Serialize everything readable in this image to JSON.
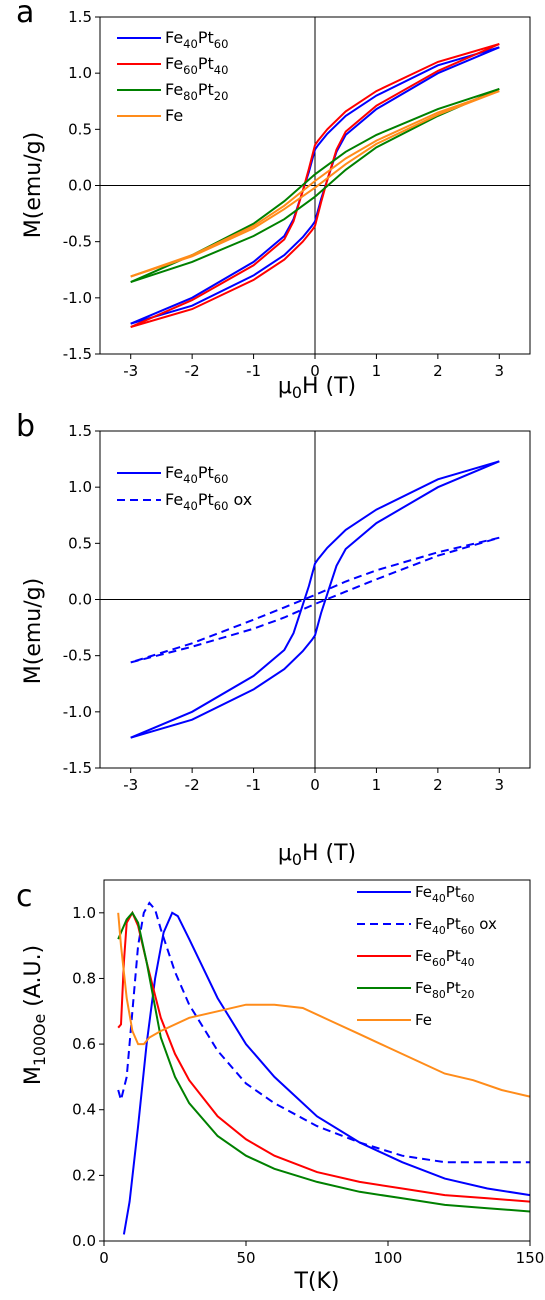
{
  "chart_data": [
    {
      "panel": "a",
      "type": "line",
      "xlabel": "μ0H (T)",
      "ylabel": "M(emu/g)",
      "xlim": [
        -3.5,
        3.5
      ],
      "ylim": [
        -1.5,
        1.5
      ],
      "xticks": [
        -3,
        -2,
        -1,
        0,
        1,
        2,
        3
      ],
      "yticks": [
        -1.5,
        -1.0,
        -0.5,
        0.0,
        0.5,
        1.0,
        1.5
      ],
      "legend_position": "top-left",
      "series": [
        {
          "name": "Fe40Pt60",
          "color": "#0000ff",
          "style": "solid",
          "descending": [
            [
              3.0,
              1.23
            ],
            [
              2.0,
              1.07
            ],
            [
              1.0,
              0.8
            ],
            [
              0.5,
              0.62
            ],
            [
              0.2,
              0.46
            ],
            [
              0.05,
              0.36
            ],
            [
              0.0,
              0.32
            ],
            [
              -0.1,
              0.12
            ],
            [
              -0.2,
              -0.05
            ],
            [
              -0.35,
              -0.3
            ],
            [
              -0.5,
              -0.45
            ],
            [
              -1.0,
              -0.68
            ],
            [
              -2.0,
              -1.0
            ],
            [
              -3.0,
              -1.23
            ]
          ],
          "ascending": [
            [
              -3.0,
              -1.23
            ],
            [
              -2.0,
              -1.07
            ],
            [
              -1.0,
              -0.8
            ],
            [
              -0.5,
              -0.62
            ],
            [
              -0.2,
              -0.46
            ],
            [
              -0.05,
              -0.36
            ],
            [
              0.0,
              -0.32
            ],
            [
              0.1,
              -0.12
            ],
            [
              0.2,
              0.05
            ],
            [
              0.35,
              0.3
            ],
            [
              0.5,
              0.45
            ],
            [
              1.0,
              0.68
            ],
            [
              2.0,
              1.0
            ],
            [
              3.0,
              1.23
            ]
          ]
        },
        {
          "name": "Fe60Pt40",
          "color": "#ff0000",
          "style": "solid",
          "descending": [
            [
              3.0,
              1.26
            ],
            [
              2.0,
              1.1
            ],
            [
              1.0,
              0.84
            ],
            [
              0.5,
              0.66
            ],
            [
              0.2,
              0.5
            ],
            [
              0.05,
              0.4
            ],
            [
              0.0,
              0.36
            ],
            [
              -0.1,
              0.15
            ],
            [
              -0.2,
              -0.05
            ],
            [
              -0.35,
              -0.32
            ],
            [
              -0.5,
              -0.48
            ],
            [
              -1.0,
              -0.71
            ],
            [
              -2.0,
              -1.02
            ],
            [
              -3.0,
              -1.26
            ]
          ],
          "ascending": [
            [
              -3.0,
              -1.26
            ],
            [
              -2.0,
              -1.1
            ],
            [
              -1.0,
              -0.84
            ],
            [
              -0.5,
              -0.66
            ],
            [
              -0.2,
              -0.5
            ],
            [
              -0.05,
              -0.4
            ],
            [
              0.0,
              -0.36
            ],
            [
              0.1,
              -0.15
            ],
            [
              0.2,
              0.05
            ],
            [
              0.35,
              0.32
            ],
            [
              0.5,
              0.48
            ],
            [
              1.0,
              0.71
            ],
            [
              2.0,
              1.02
            ],
            [
              3.0,
              1.26
            ]
          ]
        },
        {
          "name": "Fe80Pt20",
          "color": "#008000",
          "style": "solid",
          "descending": [
            [
              3.0,
              0.86
            ],
            [
              2.0,
              0.68
            ],
            [
              1.0,
              0.45
            ],
            [
              0.5,
              0.3
            ],
            [
              0.0,
              0.1
            ],
            [
              -0.5,
              -0.14
            ],
            [
              -1.0,
              -0.34
            ],
            [
              -2.0,
              -0.62
            ],
            [
              -3.0,
              -0.86
            ]
          ],
          "ascending": [
            [
              -3.0,
              -0.86
            ],
            [
              -2.0,
              -0.68
            ],
            [
              -1.0,
              -0.45
            ],
            [
              -0.5,
              -0.3
            ],
            [
              0.0,
              -0.1
            ],
            [
              0.5,
              0.14
            ],
            [
              1.0,
              0.34
            ],
            [
              2.0,
              0.62
            ],
            [
              3.0,
              0.86
            ]
          ]
        },
        {
          "name": "Fe",
          "color": "#ff8c1a",
          "style": "solid",
          "descending": [
            [
              3.0,
              0.84
            ],
            [
              2.0,
              0.65
            ],
            [
              1.0,
              0.4
            ],
            [
              0.5,
              0.24
            ],
            [
              0.0,
              0.04
            ],
            [
              -0.5,
              -0.18
            ],
            [
              -1.0,
              -0.36
            ],
            [
              -2.0,
              -0.62
            ],
            [
              -3.0,
              -0.81
            ]
          ],
          "ascending": [
            [
              -3.0,
              -0.81
            ],
            [
              -2.0,
              -0.63
            ],
            [
              -1.0,
              -0.38
            ],
            [
              -0.5,
              -0.21
            ],
            [
              0.0,
              -0.02
            ],
            [
              0.5,
              0.19
            ],
            [
              1.0,
              0.37
            ],
            [
              2.0,
              0.63
            ],
            [
              3.0,
              0.84
            ]
          ]
        }
      ]
    },
    {
      "panel": "b",
      "type": "line",
      "xlabel": "μ0H (T)",
      "ylabel": "M(emu/g)",
      "xlim": [
        -3.5,
        3.5
      ],
      "ylim": [
        -1.5,
        1.5
      ],
      "xticks": [
        -3,
        -2,
        -1,
        0,
        1,
        2,
        3
      ],
      "yticks": [
        -1.5,
        -1.0,
        -0.5,
        0.0,
        0.5,
        1.0,
        1.5
      ],
      "legend_position": "top-left",
      "series": [
        {
          "name": "Fe40Pt60",
          "color": "#0000ff",
          "style": "solid",
          "descending": [
            [
              3.0,
              1.23
            ],
            [
              2.0,
              1.07
            ],
            [
              1.0,
              0.8
            ],
            [
              0.5,
              0.62
            ],
            [
              0.2,
              0.46
            ],
            [
              0.05,
              0.36
            ],
            [
              0.0,
              0.32
            ],
            [
              -0.1,
              0.12
            ],
            [
              -0.2,
              -0.05
            ],
            [
              -0.35,
              -0.3
            ],
            [
              -0.5,
              -0.45
            ],
            [
              -1.0,
              -0.68
            ],
            [
              -2.0,
              -1.0
            ],
            [
              -3.0,
              -1.23
            ]
          ],
          "ascending": [
            [
              -3.0,
              -1.23
            ],
            [
              -2.0,
              -1.07
            ],
            [
              -1.0,
              -0.8
            ],
            [
              -0.5,
              -0.62
            ],
            [
              -0.2,
              -0.46
            ],
            [
              -0.05,
              -0.36
            ],
            [
              0.0,
              -0.32
            ],
            [
              0.1,
              -0.12
            ],
            [
              0.2,
              0.05
            ],
            [
              0.35,
              0.3
            ],
            [
              0.5,
              0.45
            ],
            [
              1.0,
              0.68
            ],
            [
              2.0,
              1.0
            ],
            [
              3.0,
              1.23
            ]
          ]
        },
        {
          "name": "Fe40Pt60 ox",
          "color": "#0000ff",
          "style": "dashed",
          "descending": [
            [
              3.0,
              0.55
            ],
            [
              2.0,
              0.42
            ],
            [
              1.0,
              0.26
            ],
            [
              0.5,
              0.16
            ],
            [
              0.0,
              0.04
            ],
            [
              -0.5,
              -0.07
            ],
            [
              -1.0,
              -0.18
            ],
            [
              -2.0,
              -0.39
            ],
            [
              -3.0,
              -0.56
            ]
          ],
          "ascending": [
            [
              -3.0,
              -0.56
            ],
            [
              -2.0,
              -0.42
            ],
            [
              -1.0,
              -0.26
            ],
            [
              -0.5,
              -0.16
            ],
            [
              0.0,
              -0.04
            ],
            [
              0.5,
              0.07
            ],
            [
              1.0,
              0.18
            ],
            [
              2.0,
              0.39
            ],
            [
              3.0,
              0.55
            ]
          ]
        }
      ]
    },
    {
      "panel": "c",
      "type": "line",
      "xlabel": "T(K)",
      "ylabel": "M100Oe (A.U.)",
      "xlim": [
        0,
        150
      ],
      "ylim": [
        0.0,
        1.1
      ],
      "xticks": [
        0,
        50,
        100,
        150
      ],
      "yticks": [
        0.0,
        0.2,
        0.4,
        0.6,
        0.8,
        1.0
      ],
      "legend_position": "top-right",
      "series": [
        {
          "name": "Fe40Pt60",
          "color": "#0000ff",
          "style": "solid",
          "points": [
            [
              7,
              0.02
            ],
            [
              9,
              0.12
            ],
            [
              12,
              0.35
            ],
            [
              15,
              0.6
            ],
            [
              18,
              0.8
            ],
            [
              21,
              0.94
            ],
            [
              24,
              1.0
            ],
            [
              26,
              0.99
            ],
            [
              30,
              0.92
            ],
            [
              35,
              0.83
            ],
            [
              40,
              0.74
            ],
            [
              50,
              0.6
            ],
            [
              60,
              0.5
            ],
            [
              75,
              0.38
            ],
            [
              90,
              0.3
            ],
            [
              105,
              0.24
            ],
            [
              120,
              0.19
            ],
            [
              135,
              0.16
            ],
            [
              150,
              0.14
            ]
          ]
        },
        {
          "name": "Fe40Pt60 ox",
          "color": "#0000ff",
          "style": "dashed",
          "points": [
            [
              5,
              0.46
            ],
            [
              6,
              0.43
            ],
            [
              8,
              0.5
            ],
            [
              10,
              0.7
            ],
            [
              12,
              0.9
            ],
            [
              14,
              1.0
            ],
            [
              16,
              1.03
            ],
            [
              18,
              1.01
            ],
            [
              20,
              0.95
            ],
            [
              25,
              0.82
            ],
            [
              30,
              0.72
            ],
            [
              40,
              0.58
            ],
            [
              50,
              0.48
            ],
            [
              60,
              0.42
            ],
            [
              75,
              0.35
            ],
            [
              90,
              0.3
            ],
            [
              105,
              0.26
            ],
            [
              120,
              0.24
            ],
            [
              135,
              0.24
            ],
            [
              150,
              0.24
            ]
          ]
        },
        {
          "name": "Fe60Pt40",
          "color": "#ff0000",
          "style": "solid",
          "points": [
            [
              5,
              0.65
            ],
            [
              6,
              0.66
            ],
            [
              7,
              0.85
            ],
            [
              8,
              0.97
            ],
            [
              10,
              1.0
            ],
            [
              12,
              0.96
            ],
            [
              15,
              0.85
            ],
            [
              20,
              0.68
            ],
            [
              25,
              0.57
            ],
            [
              30,
              0.49
            ],
            [
              40,
              0.38
            ],
            [
              50,
              0.31
            ],
            [
              60,
              0.26
            ],
            [
              75,
              0.21
            ],
            [
              90,
              0.18
            ],
            [
              105,
              0.16
            ],
            [
              120,
              0.14
            ],
            [
              135,
              0.13
            ],
            [
              150,
              0.12
            ]
          ]
        },
        {
          "name": "Fe80Pt20",
          "color": "#008000",
          "style": "solid",
          "points": [
            [
              5,
              0.92
            ],
            [
              6,
              0.94
            ],
            [
              8,
              0.98
            ],
            [
              10,
              1.0
            ],
            [
              12,
              0.97
            ],
            [
              15,
              0.85
            ],
            [
              20,
              0.62
            ],
            [
              25,
              0.5
            ],
            [
              30,
              0.42
            ],
            [
              40,
              0.32
            ],
            [
              50,
              0.26
            ],
            [
              60,
              0.22
            ],
            [
              75,
              0.18
            ],
            [
              90,
              0.15
            ],
            [
              105,
              0.13
            ],
            [
              120,
              0.11
            ],
            [
              135,
              0.1
            ],
            [
              150,
              0.09
            ]
          ]
        },
        {
          "name": "Fe",
          "color": "#ff8c1a",
          "style": "solid",
          "points": [
            [
              5,
              1.0
            ],
            [
              6,
              0.9
            ],
            [
              8,
              0.74
            ],
            [
              10,
              0.64
            ],
            [
              12,
              0.6
            ],
            [
              14,
              0.6
            ],
            [
              16,
              0.62
            ],
            [
              20,
              0.64
            ],
            [
              30,
              0.68
            ],
            [
              40,
              0.7
            ],
            [
              50,
              0.72
            ],
            [
              60,
              0.72
            ],
            [
              70,
              0.71
            ],
            [
              80,
              0.67
            ],
            [
              90,
              0.63
            ],
            [
              100,
              0.59
            ],
            [
              110,
              0.55
            ],
            [
              120,
              0.51
            ],
            [
              130,
              0.49
            ],
            [
              140,
              0.46
            ],
            [
              150,
              0.44
            ]
          ]
        }
      ]
    }
  ]
}
